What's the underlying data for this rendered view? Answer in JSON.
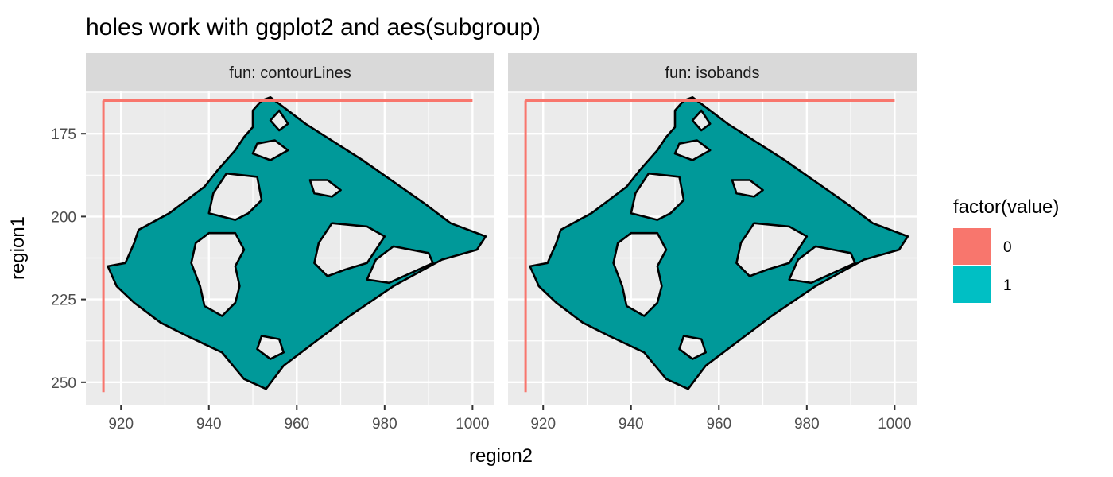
{
  "chart_data": {
    "type": "area",
    "title": "holes work with ggplot2 and aes(subgroup)",
    "xlabel": "region2",
    "ylabel": "region1",
    "xlim": [
      912,
      1005
    ],
    "ylim": [
      257,
      162
    ],
    "y_reversed": true,
    "x_ticks": [
      920,
      940,
      960,
      980,
      1000
    ],
    "y_ticks": [
      175,
      200,
      225,
      250
    ],
    "grid": true,
    "facets": [
      {
        "label": "fun: contourLines"
      },
      {
        "label": "fun: isobands"
      }
    ],
    "legend": {
      "title": "factor(value)",
      "position": "right",
      "entries": [
        {
          "label": "0",
          "color": "#F8766D"
        },
        {
          "label": "1",
          "color": "#00BFC4"
        }
      ]
    },
    "series": [
      {
        "name": "0",
        "color": "#F8766D",
        "lines": [
          [
            [
              916,
              165
            ],
            [
              1000,
              165
            ]
          ],
          [
            [
              916,
              165
            ],
            [
              916,
              253
            ]
          ]
        ]
      },
      {
        "name": "1",
        "fill": "#009999",
        "outline": "#000000",
        "region": [
          [
            954,
            164
          ],
          [
            957,
            167
          ],
          [
            959,
            169
          ],
          [
            962,
            172
          ],
          [
            975,
            183
          ],
          [
            989,
            196
          ],
          [
            995,
            202
          ],
          [
            1003,
            206
          ],
          [
            1001,
            210
          ],
          [
            993,
            213
          ],
          [
            982,
            221
          ],
          [
            972,
            230
          ],
          [
            961,
            241
          ],
          [
            957,
            245
          ],
          [
            953,
            252
          ],
          [
            948,
            249
          ],
          [
            943,
            241
          ],
          [
            935,
            236
          ],
          [
            929,
            232
          ],
          [
            923,
            226
          ],
          [
            919,
            221
          ],
          [
            917,
            215
          ],
          [
            921,
            214
          ],
          [
            923,
            208
          ],
          [
            924,
            204
          ],
          [
            931,
            199
          ],
          [
            939,
            191
          ],
          [
            942,
            186
          ],
          [
            946,
            180
          ],
          [
            948,
            176
          ],
          [
            950,
            173
          ],
          [
            950,
            168
          ],
          [
            952,
            165
          ]
        ],
        "holes": [
          [
            [
              956,
              168
            ],
            [
              958,
              172
            ],
            [
              956,
              174
            ],
            [
              954,
              171
            ]
          ],
          [
            [
              944,
              187
            ],
            [
              951,
              188
            ],
            [
              952,
              195
            ],
            [
              949,
              199
            ],
            [
              946,
              201
            ],
            [
              940,
              199
            ],
            [
              941,
              193
            ]
          ],
          [
            [
              940,
              205
            ],
            [
              946,
              205
            ],
            [
              948,
              210
            ],
            [
              946,
              215
            ],
            [
              947,
              221
            ],
            [
              946,
              226
            ],
            [
              943,
              230
            ],
            [
              939,
              227
            ],
            [
              938,
              221
            ],
            [
              936,
              214
            ],
            [
              937,
              208
            ]
          ],
          [
            [
              968,
              202
            ],
            [
              976,
              203
            ],
            [
              980,
              206
            ],
            [
              978,
              210
            ],
            [
              976,
              214
            ],
            [
              971,
              216
            ],
            [
              967,
              218
            ],
            [
              964,
              214
            ],
            [
              965,
              208
            ]
          ],
          [
            [
              982,
              209
            ],
            [
              990,
              211
            ],
            [
              991,
              214
            ],
            [
              986,
              217
            ],
            [
              981,
              220
            ],
            [
              976,
              219
            ],
            [
              978,
              213
            ]
          ],
          [
            [
              963,
              189
            ],
            [
              967,
              189
            ],
            [
              970,
              192
            ],
            [
              968,
              194
            ],
            [
              964,
              193
            ]
          ],
          [
            [
              951,
              178
            ],
            [
              955,
              177
            ],
            [
              958,
              180
            ],
            [
              954,
              183
            ],
            [
              950,
              181
            ]
          ],
          [
            [
              952,
              236
            ],
            [
              956,
              237
            ],
            [
              957,
              241
            ],
            [
              954,
              243
            ],
            [
              951,
              240
            ]
          ]
        ]
      }
    ]
  }
}
